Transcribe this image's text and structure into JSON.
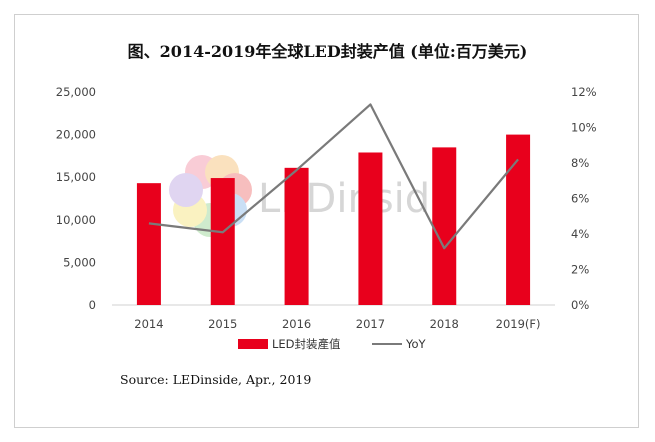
{
  "title": "图、2014-2019年全球LED封装产值 (单位:百万美元)",
  "source": "Source: LEDinside, Apr., 2019",
  "watermark": "LEDinside",
  "colors": {
    "bar": "#e8001c",
    "line": "#7a7a7a"
  },
  "chart_data": {
    "type": "bar",
    "categories": [
      "2014",
      "2015",
      "2016",
      "2017",
      "2018",
      "2019(F)"
    ],
    "series": [
      {
        "name": "LED封装產值",
        "type": "bar",
        "axis": "left",
        "values": [
          14300,
          14900,
          16100,
          17900,
          18500,
          20000
        ]
      },
      {
        "name": "YoY",
        "type": "line",
        "axis": "right",
        "values": [
          4.6,
          4.1,
          7.6,
          11.3,
          3.2,
          8.2
        ]
      }
    ],
    "yleft": {
      "min": 0,
      "max": 25000,
      "ticks": [
        "0",
        "5,000",
        "10,000",
        "15,000",
        "20,000",
        "25,000"
      ]
    },
    "yright": {
      "min": 0,
      "max": 12,
      "ticks": [
        "0%",
        "2%",
        "4%",
        "6%",
        "8%",
        "10%",
        "12%"
      ]
    },
    "legend": "bottom"
  }
}
